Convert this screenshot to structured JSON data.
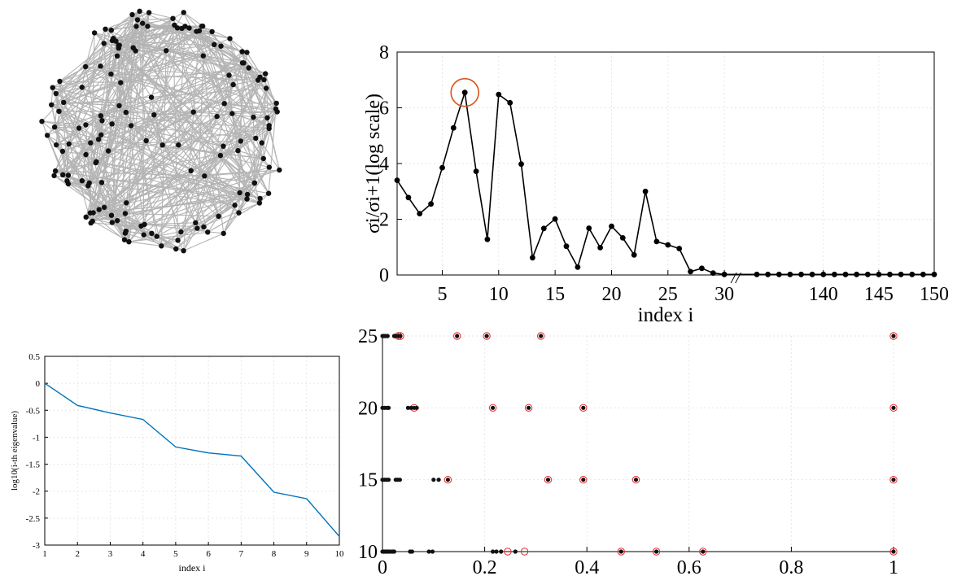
{
  "colors": {
    "edge": "#b4b4b4",
    "node": "#111111",
    "line_black": "#000000",
    "highlight_orange": "#d95319",
    "eigen_blue": "#0072bd",
    "hollow_red": "#e8272b",
    "grid": "#e6e6e6"
  },
  "chart_data": [
    {
      "id": "graph",
      "type": "network",
      "layout": "sphere projection"
    },
    {
      "id": "ratio_plot",
      "type": "line",
      "ylabel": "σi/σi+1(log scale)",
      "xlabel": "index i",
      "ylim": [
        0,
        8
      ],
      "yticks": [
        "0",
        "2",
        "4",
        "6",
        "8"
      ],
      "xticks": [
        "5",
        "10",
        "15",
        "20",
        "25",
        "30",
        "140",
        "145",
        "150"
      ],
      "axis_break": "//",
      "grid": true,
      "series_left": {
        "x": [
          1,
          2,
          3,
          4,
          5,
          6,
          7,
          8,
          9,
          10,
          11,
          12,
          13,
          14,
          15,
          16,
          17,
          18,
          19,
          20,
          21,
          22,
          23,
          24,
          25,
          26,
          27,
          28,
          29,
          30
        ],
        "y": [
          3.4,
          2.78,
          2.2,
          2.55,
          3.85,
          5.28,
          6.55,
          3.72,
          1.28,
          6.48,
          6.18,
          3.98,
          0.62,
          1.67,
          2.01,
          1.03,
          0.28,
          1.68,
          0.98,
          1.75,
          1.33,
          0.72,
          3.0,
          1.2,
          1.08,
          0.95,
          0.12,
          0.24,
          0.07,
          0.02
        ]
      },
      "series_right": {
        "x": [
          134,
          135,
          136,
          137,
          138,
          139,
          140,
          141,
          142,
          143,
          144,
          145,
          146,
          147,
          148,
          149,
          150
        ],
        "y": [
          0.02,
          0.02,
          0.02,
          0.02,
          0.02,
          0.02,
          0.02,
          0.02,
          0.02,
          0.02,
          0.02,
          0.02,
          0.02,
          0.02,
          0.02,
          0.02,
          0.02
        ]
      },
      "highlight": {
        "x": 7,
        "y": 6.55
      }
    },
    {
      "id": "eigen_plot",
      "type": "line",
      "xlabel": "index i",
      "ylabel": "log10(i-th eigenvalue)",
      "xlim": [
        1,
        10
      ],
      "ylim": [
        -3,
        0.5
      ],
      "xticks": [
        "1",
        "2",
        "3",
        "4",
        "5",
        "6",
        "7",
        "8",
        "9",
        "10"
      ],
      "yticks": [
        "0.5",
        "0",
        "-0.5",
        "-1",
        "-1.5",
        "-2",
        "-2.5",
        "-3"
      ],
      "grid": true,
      "x": [
        1,
        2,
        3,
        4,
        5,
        6,
        7,
        8,
        9,
        10
      ],
      "y": [
        0,
        -0.41,
        -0.55,
        -0.67,
        -1.18,
        -1.29,
        -1.35,
        -2.02,
        -2.14,
        -2.84
      ]
    },
    {
      "id": "scatter_plot",
      "type": "scatter",
      "xlim": [
        0,
        1
      ],
      "ylim": [
        10,
        25
      ],
      "xticks": [
        "0",
        "0.2",
        "0.4",
        "0.6",
        "0.8",
        "1"
      ],
      "yticks": [
        "10",
        "15",
        "20",
        "25"
      ],
      "grid": true,
      "rows": [
        {
          "y": 25,
          "black": [
            0.0,
            0.003,
            0.006,
            0.01,
            0.023,
            0.026,
            0.031,
            0.035,
            0.146,
            0.204,
            0.31,
            1.0
          ],
          "red": [
            0.031,
            0.035,
            0.146,
            0.204,
            0.31,
            1.0
          ]
        },
        {
          "y": 20,
          "black": [
            0.0,
            0.004,
            0.009,
            0.012,
            0.05,
            0.056,
            0.062,
            0.067,
            0.216,
            0.286,
            0.393,
            1.0
          ],
          "red": [
            0.062,
            0.216,
            0.286,
            0.393,
            1.0
          ]
        },
        {
          "y": 15,
          "black": [
            0.0,
            0.004,
            0.008,
            0.012,
            0.026,
            0.03,
            0.034,
            0.1,
            0.11,
            0.128,
            0.324,
            0.393,
            0.496,
            1.0
          ],
          "red": [
            0.128,
            0.324,
            0.393,
            0.496,
            1.0
          ]
        },
        {
          "y": 10,
          "black": [
            0.0,
            0.003,
            0.006,
            0.009,
            0.012,
            0.016,
            0.02,
            0.023,
            0.054,
            0.058,
            0.091,
            0.098,
            0.216,
            0.223,
            0.232,
            0.26,
            0.467,
            0.536,
            0.627,
            1.0
          ],
          "red": [
            0.245,
            0.278,
            0.467,
            0.536,
            0.627,
            1.0
          ]
        }
      ]
    }
  ]
}
